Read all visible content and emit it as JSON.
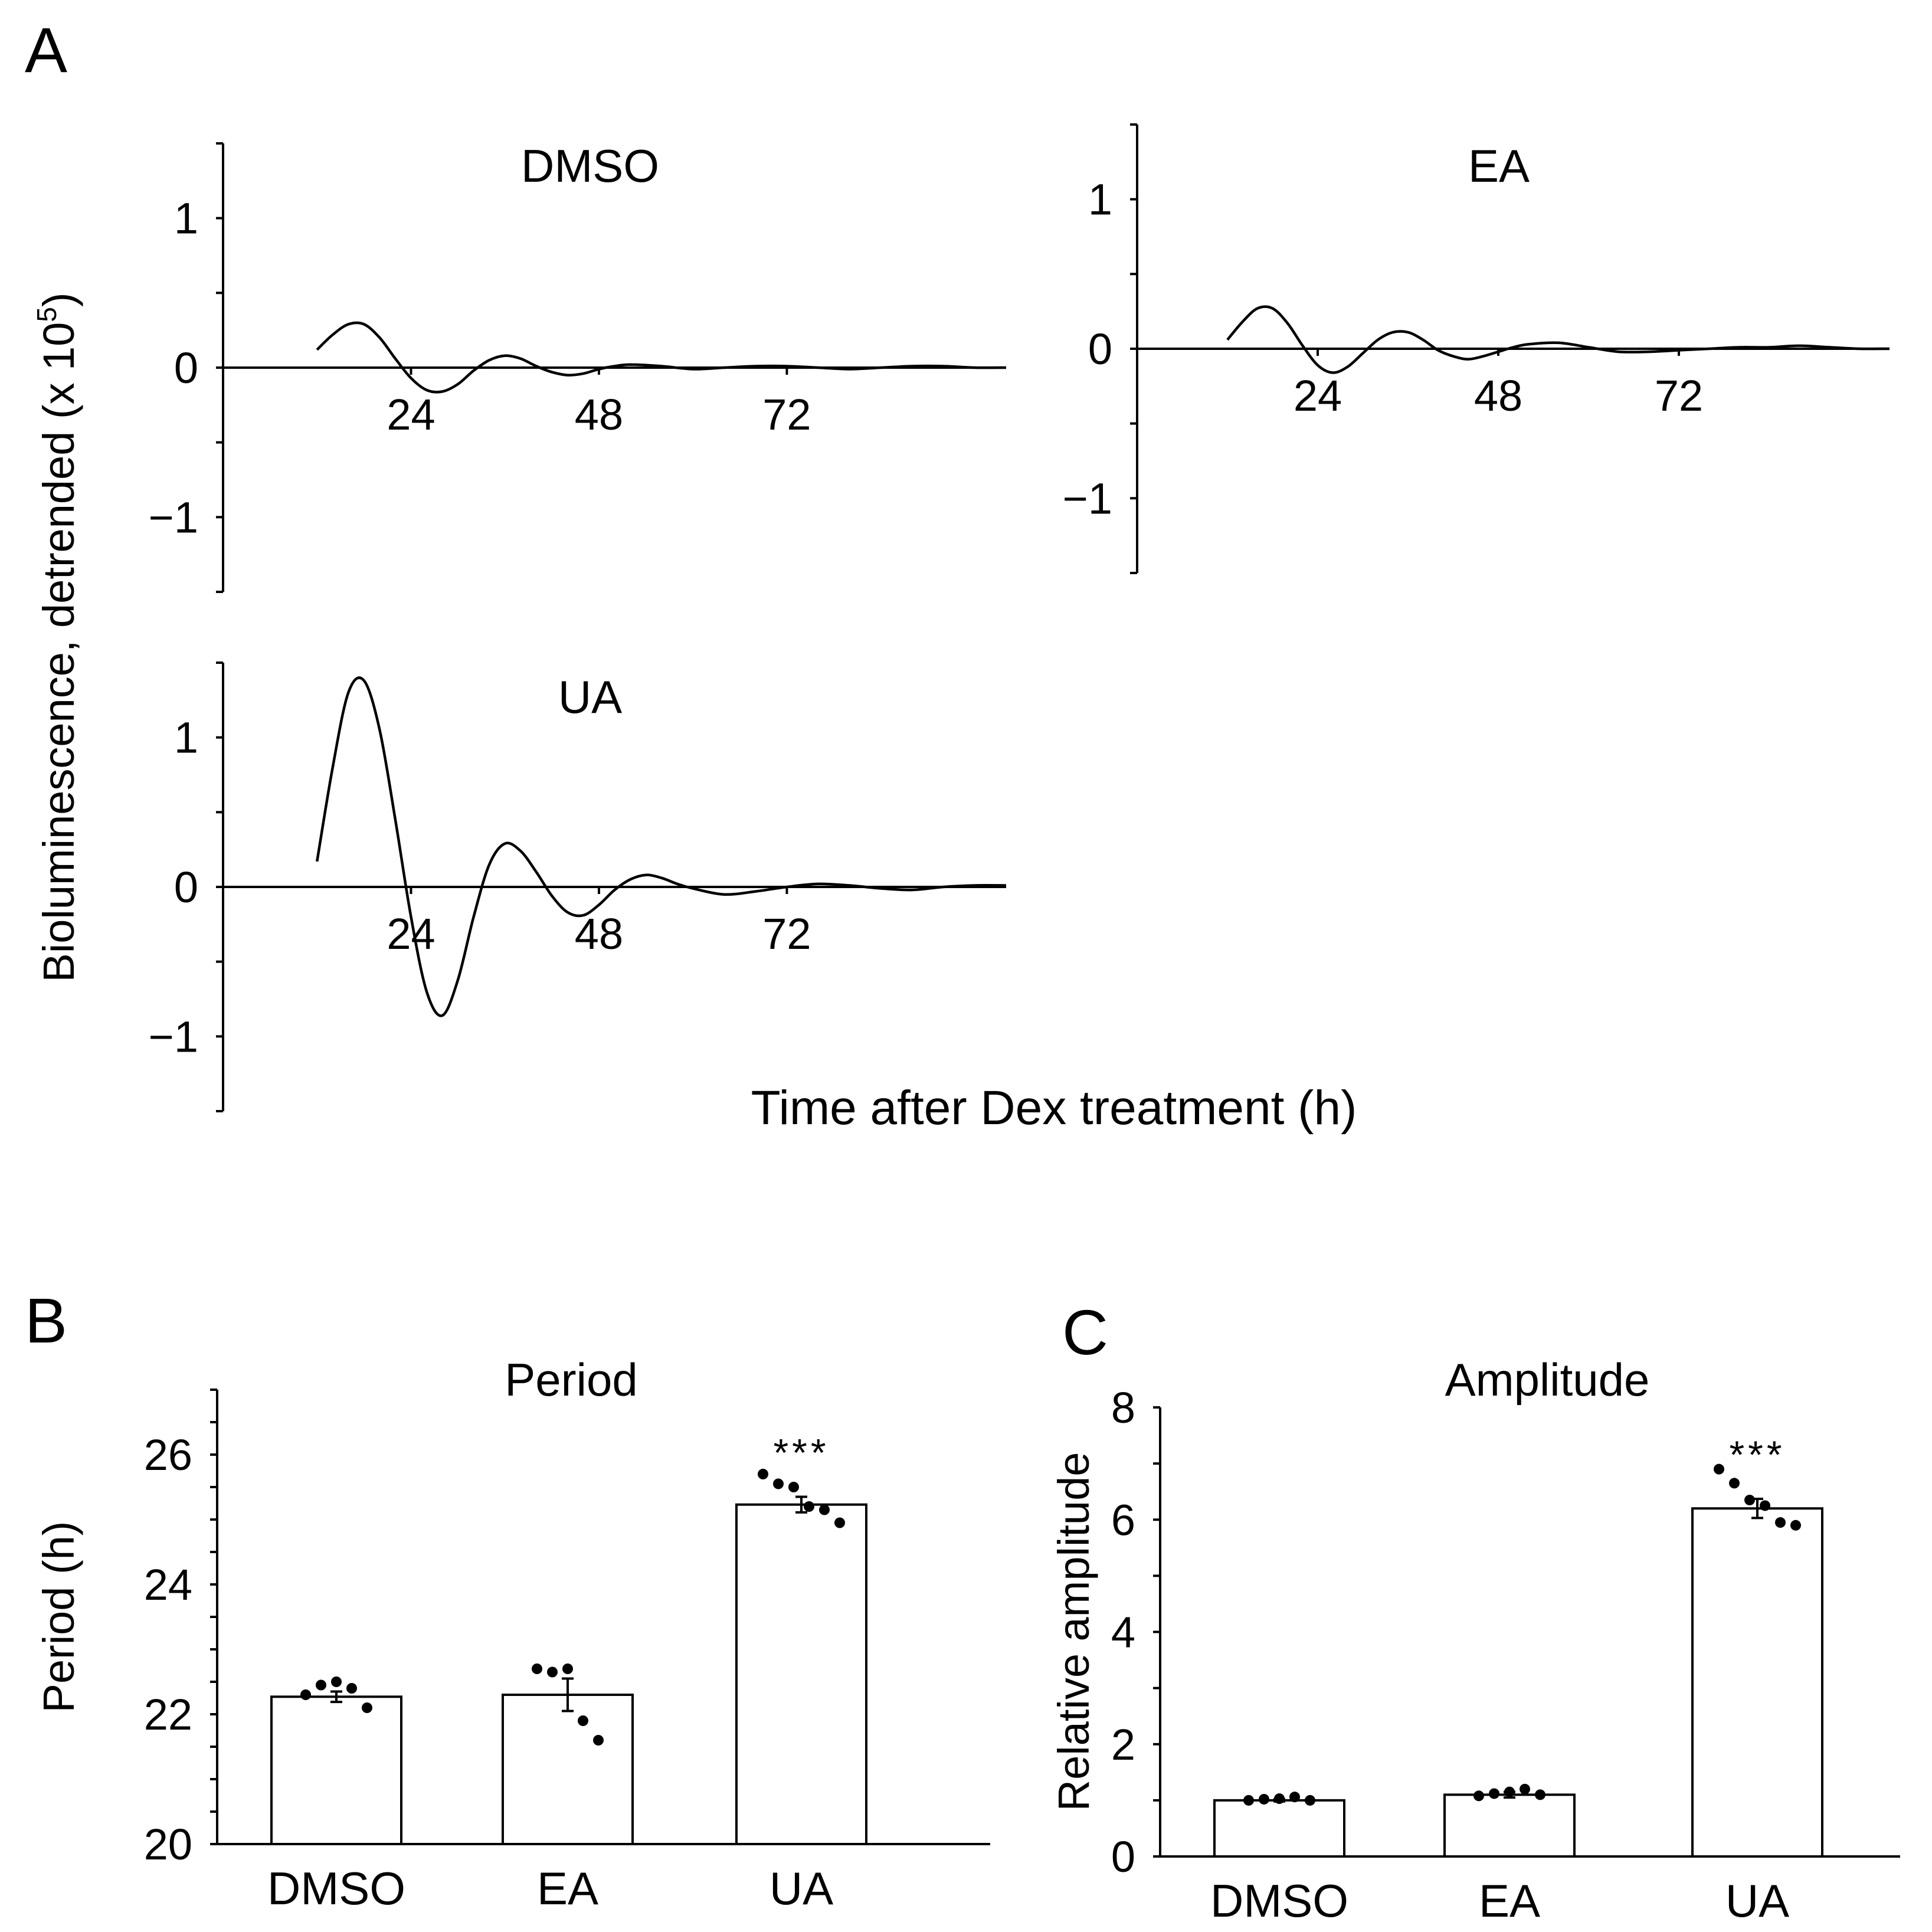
{
  "panel_labels": {
    "a": "A",
    "b": "B",
    "c": "C"
  },
  "chart_data": [
    {
      "type": "line",
      "panel": "A",
      "title": "DMSO",
      "ylabel_prefix": "Bioluminescence, detrended (x 10",
      "ylabel_exp": "5",
      "ylabel_suffix": ")",
      "xlabel": "Time after Dex treatment (h)",
      "xlim": [
        0,
        100
      ],
      "ylim": [
        -1.5,
        1.5
      ],
      "yticks": [
        1,
        0,
        -1
      ],
      "ytick_labels": [
        "1",
        "0",
        "−1"
      ],
      "xticks": [
        24,
        48,
        72
      ],
      "xtick_labels": [
        "24",
        "48",
        "72"
      ],
      "series": [
        {
          "name": "DMSO",
          "x": [
            12,
            14,
            16,
            18,
            20,
            22,
            24,
            26,
            28,
            30,
            32,
            34,
            36,
            38,
            40,
            42,
            44,
            46,
            48,
            50,
            52,
            56,
            60,
            64,
            68,
            72,
            76,
            80,
            84,
            88,
            92,
            96,
            100
          ],
          "y": [
            0.12,
            0.22,
            0.29,
            0.29,
            0.2,
            0.06,
            -0.07,
            -0.15,
            -0.16,
            -0.11,
            -0.02,
            0.05,
            0.08,
            0.06,
            0.01,
            -0.03,
            -0.05,
            -0.04,
            -0.01,
            0.01,
            0.02,
            0.01,
            -0.01,
            0.0,
            0.01,
            0.01,
            0.0,
            -0.01,
            0.0,
            0.01,
            0.01,
            0.0,
            0.0
          ]
        }
      ]
    },
    {
      "type": "line",
      "panel": "A",
      "title": "EA",
      "xlim": [
        0,
        100
      ],
      "ylim": [
        -1.5,
        1.5
      ],
      "yticks": [
        1,
        0,
        -1
      ],
      "ytick_labels": [
        "1",
        "0",
        "−1"
      ],
      "xticks": [
        24,
        48,
        72
      ],
      "xtick_labels": [
        "24",
        "48",
        "72"
      ],
      "series": [
        {
          "name": "EA",
          "x": [
            12,
            14,
            16,
            18,
            20,
            22,
            24,
            26,
            28,
            30,
            32,
            34,
            36,
            38,
            40,
            42,
            44,
            46,
            48,
            50,
            52,
            56,
            60,
            64,
            68,
            72,
            76,
            80,
            84,
            88,
            92,
            96,
            100
          ],
          "y": [
            0.06,
            0.18,
            0.27,
            0.27,
            0.17,
            0.02,
            -0.11,
            -0.16,
            -0.12,
            -0.03,
            0.06,
            0.11,
            0.11,
            0.06,
            -0.01,
            -0.05,
            -0.07,
            -0.05,
            -0.02,
            0.01,
            0.03,
            0.04,
            0.01,
            -0.02,
            -0.02,
            -0.01,
            0.0,
            0.01,
            0.01,
            0.02,
            0.01,
            0.0,
            0.0
          ]
        }
      ]
    },
    {
      "type": "line",
      "panel": "A",
      "title": "UA",
      "xlim": [
        0,
        100
      ],
      "ylim": [
        -1.5,
        1.5
      ],
      "yticks": [
        1,
        0,
        -1
      ],
      "ytick_labels": [
        "1",
        "0",
        "−1"
      ],
      "xticks": [
        24,
        48,
        72
      ],
      "xtick_labels": [
        "24",
        "48",
        "72"
      ],
      "series": [
        {
          "name": "UA",
          "x": [
            12,
            14,
            16,
            18,
            20,
            22,
            24,
            26,
            28,
            30,
            32,
            34,
            36,
            38,
            40,
            42,
            44,
            46,
            48,
            50,
            52,
            54,
            56,
            58,
            60,
            64,
            68,
            72,
            76,
            80,
            84,
            88,
            92,
            96,
            100
          ],
          "y": [
            0.17,
            0.8,
            1.3,
            1.38,
            1.05,
            0.45,
            -0.2,
            -0.7,
            -0.86,
            -0.62,
            -0.2,
            0.15,
            0.29,
            0.24,
            0.1,
            -0.06,
            -0.17,
            -0.19,
            -0.12,
            -0.02,
            0.05,
            0.08,
            0.06,
            0.02,
            -0.01,
            -0.05,
            -0.03,
            0.0,
            0.02,
            0.01,
            -0.01,
            -0.02,
            0.0,
            0.01,
            0.01
          ]
        }
      ]
    },
    {
      "type": "bar",
      "panel": "B",
      "title": "Period",
      "ylabel": "Period (h)",
      "ylim": [
        20,
        27
      ],
      "yticks": [
        20,
        22,
        24,
        26
      ],
      "categories": [
        "DMSO",
        "EA",
        "UA"
      ],
      "values": [
        22.27,
        22.3,
        25.23
      ],
      "errors": [
        0.08,
        0.25,
        0.12
      ],
      "points": [
        [
          22.3,
          22.45,
          22.5,
          22.4,
          22.1
        ],
        [
          22.7,
          22.65,
          22.7,
          21.9,
          21.6
        ],
        [
          25.7,
          25.55,
          25.5,
          25.2,
          25.15,
          24.95
        ]
      ],
      "annotations": [
        "",
        "",
        "***"
      ]
    },
    {
      "type": "bar",
      "panel": "C",
      "title": "Amplitude",
      "ylabel": "Relative amplitude",
      "ylim": [
        0,
        8
      ],
      "yticks": [
        0,
        2,
        4,
        6,
        8
      ],
      "categories": [
        "DMSO",
        "EA",
        "UA"
      ],
      "values": [
        1.0,
        1.1,
        6.2
      ],
      "errors": [
        0.02,
        0.05,
        0.17
      ],
      "points": [
        [
          1.0,
          1.02,
          1.03,
          1.06,
          1.0
        ],
        [
          1.08,
          1.12,
          1.15,
          1.2,
          1.1
        ],
        [
          6.9,
          6.65,
          6.35,
          6.25,
          5.95,
          5.9
        ]
      ],
      "annotations": [
        "",
        "",
        "***"
      ]
    }
  ]
}
